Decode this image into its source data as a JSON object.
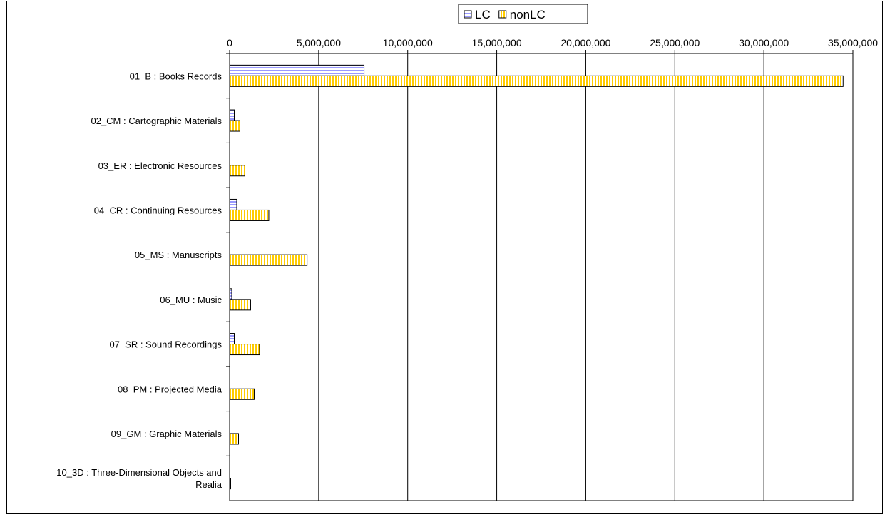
{
  "chart_data": {
    "type": "bar",
    "orientation": "horizontal",
    "title": "",
    "xlabel": "",
    "ylabel": "",
    "xlim": [
      0,
      35000000
    ],
    "x_ticks": [
      0,
      5000000,
      10000000,
      15000000,
      20000000,
      25000000,
      30000000,
      35000000
    ],
    "x_tick_labels": [
      "0",
      "5,000,000",
      "10,000,000",
      "15,000,000",
      "20,000,000",
      "25,000,000",
      "30,000,000",
      "35,000,000"
    ],
    "axis_position": "top",
    "grid": "vertical",
    "legend_position": "top-center",
    "categories": [
      [
        "01_B : Books Records"
      ],
      [
        "02_CM : Cartographic Materials"
      ],
      [
        "03_ER : Electronic Resources"
      ],
      [
        "04_CR : Continuing Resources"
      ],
      [
        "05_MS : Manuscripts"
      ],
      [
        "06_MU : Music"
      ],
      [
        "07_SR : Sound Recordings"
      ],
      [
        "08_PM : Projected Media"
      ],
      [
        "09_GM : Graphic Materials"
      ],
      [
        "10_3D : Three-Dimensional Objects and",
        "Realia"
      ]
    ],
    "series": [
      {
        "name": "LC",
        "color": "#9999ff",
        "pattern": "horizontal-stripes",
        "values": [
          7550000,
          260000,
          0,
          400000,
          0,
          120000,
          260000,
          0,
          0,
          0
        ]
      },
      {
        "name": "nonLC",
        "color": "#ffcc00",
        "pattern": "vertical-stripes",
        "values": [
          34450000,
          580000,
          860000,
          2200000,
          4350000,
          1180000,
          1680000,
          1380000,
          500000,
          60000
        ]
      }
    ]
  }
}
